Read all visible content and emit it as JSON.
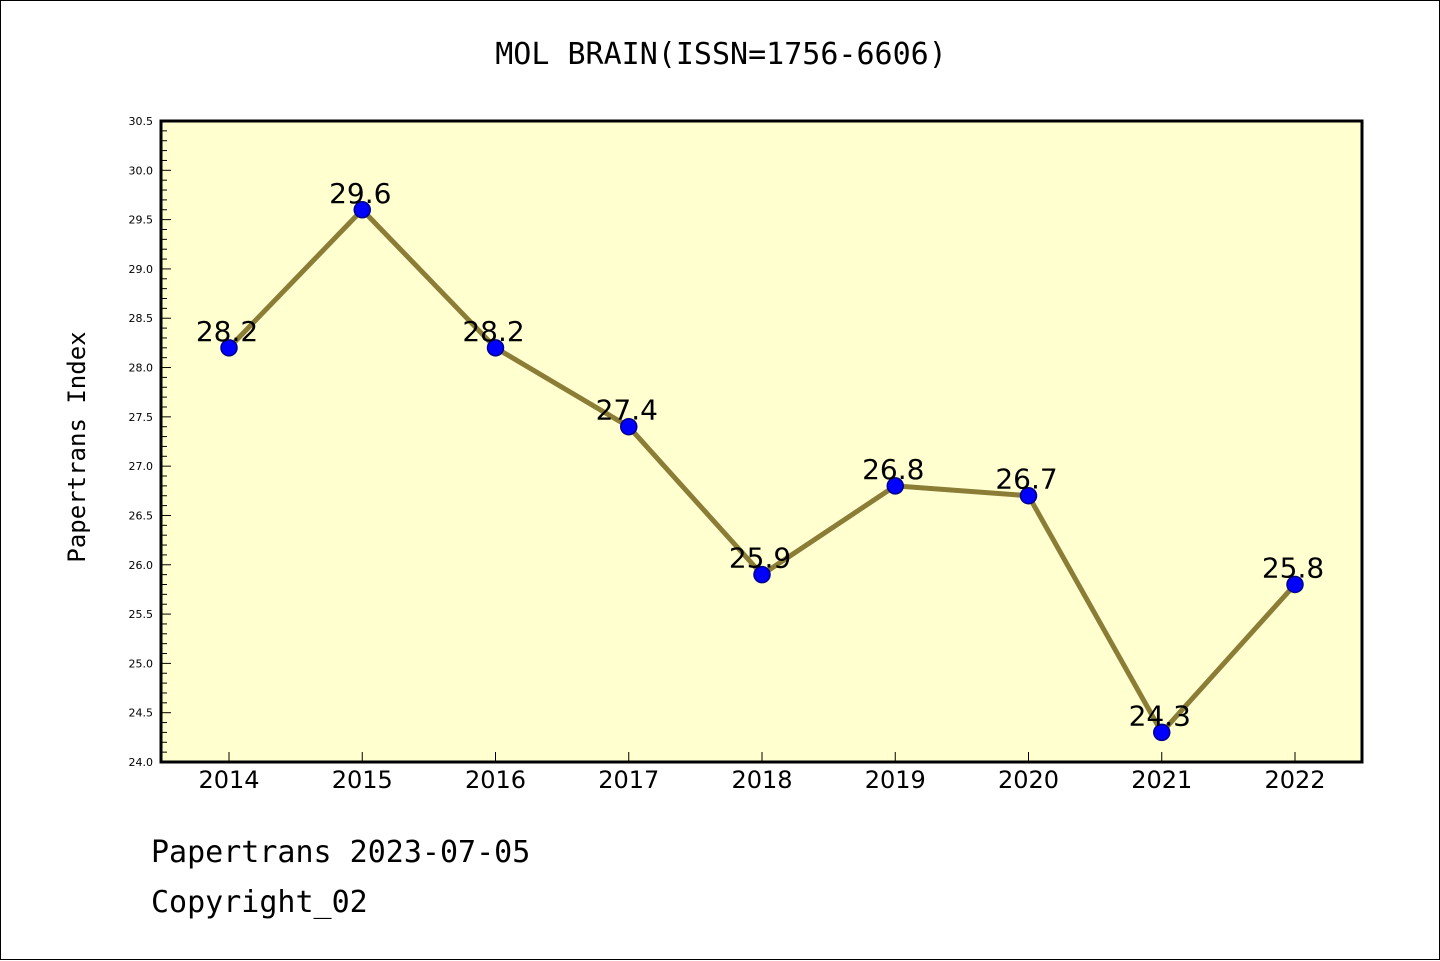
{
  "page": {
    "title": "MOL BRAIN(ISSN=1756-6606)",
    "footer_line1": "Papertrans 2023-07-05",
    "footer_line2": "Copyright_02"
  },
  "chart_data": {
    "type": "line",
    "title": "MOL BRAIN(ISSN=1756-6606)",
    "xlabel": "",
    "ylabel": "Papertrans Index",
    "categories": [
      "2014",
      "2015",
      "2016",
      "2017",
      "2018",
      "2019",
      "2020",
      "2021",
      "2022"
    ],
    "series": [
      {
        "values": [
          28.2,
          29.6,
          28.2,
          27.4,
          25.9,
          26.8,
          26.7,
          24.3,
          25.8
        ],
        "data_labels": [
          "28.2",
          "29.6",
          "28.2",
          "27.4",
          "25.9",
          "26.8",
          "26.7",
          "24.3",
          "25.8"
        ]
      }
    ],
    "ylim": [
      24.0,
      30.5
    ],
    "yticks": [
      "24.0",
      "24.5",
      "25.0",
      "25.5",
      "26.0",
      "26.5",
      "27.0",
      "27.5",
      "28.0",
      "28.5",
      "29.0",
      "29.5",
      "30.0",
      "30.5"
    ],
    "grid": false,
    "colors": {
      "plot_background": "#ffffd0",
      "line": "#8b7d35",
      "marker_fill": "#0000ff",
      "marker_edge": "#00008b"
    }
  }
}
